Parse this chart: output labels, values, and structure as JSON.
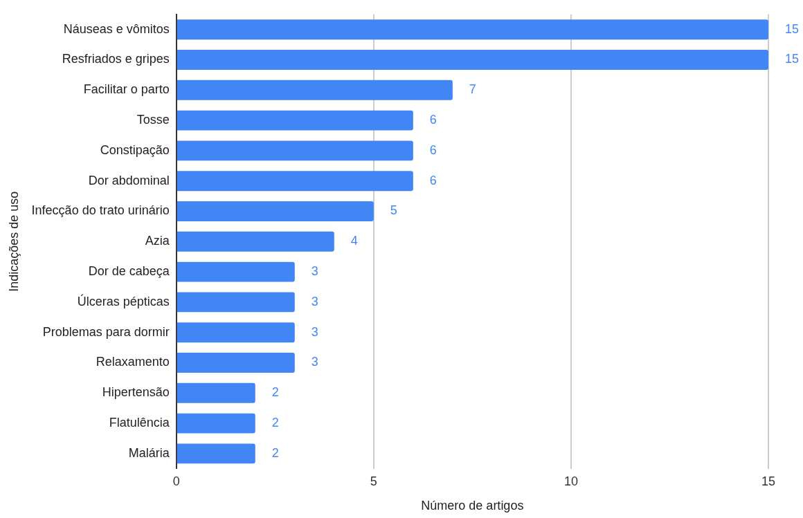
{
  "chart_data": {
    "type": "bar",
    "orientation": "horizontal",
    "xlabel": "Número de artigos",
    "ylabel": "Indicações de uso",
    "categories": [
      "Náuseas e vômitos",
      "Resfriados e gripes",
      "Facilitar o parto",
      "Tosse",
      "Constipação",
      "Dor abdominal",
      "Infecção do trato urinário",
      "Azia",
      "Dor de cabeça",
      "Úlceras pépticas",
      "Problemas para dormir",
      "Relaxamento",
      "Hipertensão",
      "Flatulência",
      "Malária"
    ],
    "values": [
      15,
      15,
      7,
      6,
      6,
      6,
      5,
      4,
      3,
      3,
      3,
      3,
      2,
      2,
      2
    ],
    "color": "#4285f4",
    "xlim": [
      0,
      15
    ],
    "xticks": [
      0,
      5,
      10,
      15
    ],
    "grid": "x",
    "data_labels": true,
    "legend": false
  }
}
